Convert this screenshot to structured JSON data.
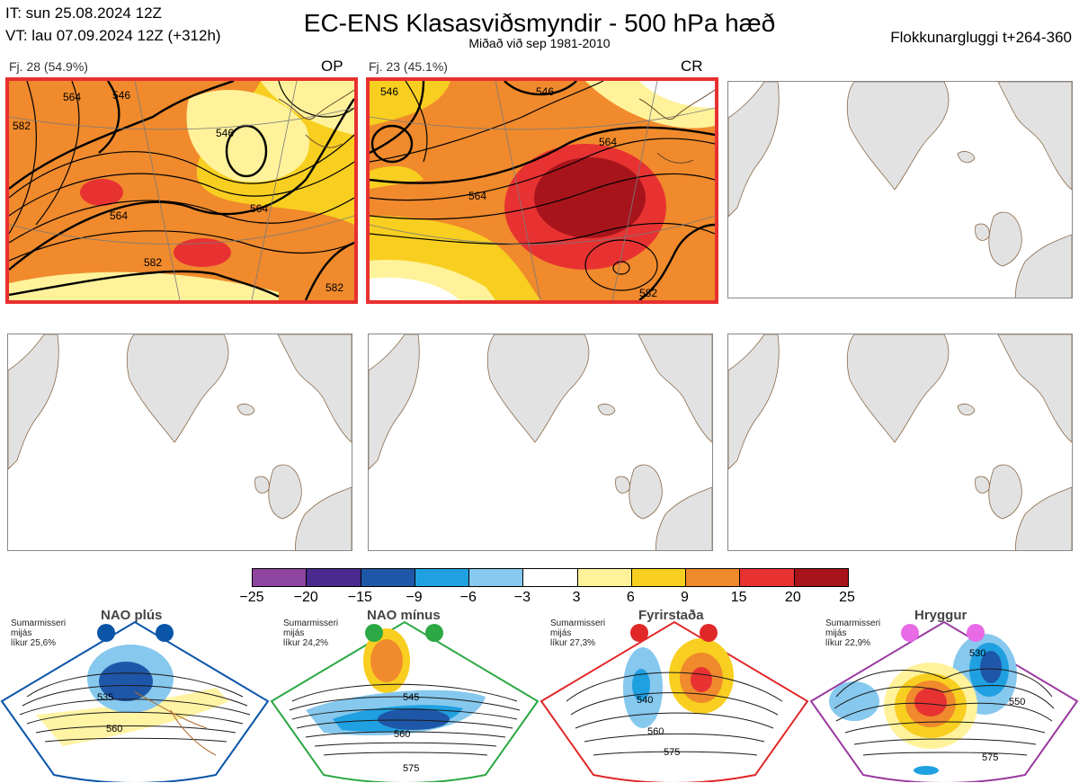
{
  "header": {
    "it_line": "IT: sun 25.08.2024 12Z",
    "vt_line": "VT: lau 07.09.2024 12Z  (+312h)",
    "title": "EC-ENS Klasasviðsmyndir - 500 hPa hæð",
    "subtitle": "Miðað við sep 1981-2010",
    "window": "Flokkunargluggi t+264-360"
  },
  "clusters": [
    {
      "label": "Fj. 28 (54.9%)",
      "tag": "OP",
      "contours": [
        "564",
        "546",
        "546",
        "564",
        "564",
        "582",
        "582",
        "582"
      ]
    },
    {
      "label": "Fj. 23 (45.1%)",
      "tag": "CR",
      "contours": [
        "546",
        "546",
        "564",
        "564",
        "582"
      ]
    }
  ],
  "colorbar": {
    "colors": [
      "#8e45a0",
      "#4a2a8e",
      "#1f57a8",
      "#1fa0e0",
      "#86c8ee",
      "#ffffff",
      "#fff29a",
      "#f8cf20",
      "#f08a2c",
      "#e83232",
      "#a8141c"
    ],
    "ticks": [
      "−25",
      "−20",
      "−15",
      "−9",
      "−6",
      "−3",
      "3",
      "6",
      "9",
      "15",
      "20",
      "25"
    ]
  },
  "regimes": [
    {
      "name": "NAO plús",
      "note": "Sumarmisseri\nmijás\nlíkur 25,6%",
      "color": "#0a55a8",
      "labels": [
        "535",
        "560"
      ]
    },
    {
      "name": "NAO mínus",
      "note": "Sumarmisseri\nmijás\nlíkur 24,2%",
      "color": "#2ca844",
      "labels": [
        "545",
        "560",
        "575"
      ]
    },
    {
      "name": "Fyrirstaða",
      "note": "Sumarmisseri\nmijás\nlíkur 27,3%",
      "color": "#e02828",
      "labels": [
        "540",
        "560",
        "575"
      ]
    },
    {
      "name": "Hryggur",
      "note": "Sumarmisseri\nmijás\nlíkur 22,9%",
      "color": "#e86ae6",
      "labels": [
        "530",
        "550",
        "575"
      ]
    }
  ]
}
